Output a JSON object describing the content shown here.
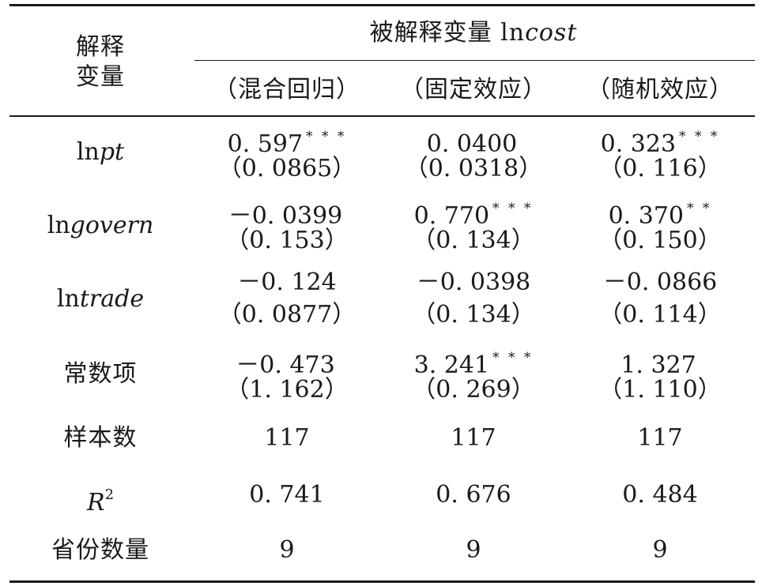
{
  "table": {
    "stub_header_1": "解释",
    "stub_header_2": "变量",
    "dependent_prefix": "被解释变量 ln",
    "dependent_var": "cost",
    "models": [
      "（混合回归）",
      "（固定效应）",
      "（随机效应）"
    ],
    "rows": [
      {
        "var_prefix": "ln",
        "var_ital": "pt",
        "coef": [
          "0. 597",
          "0. 0400",
          "0. 323"
        ],
        "stars": [
          "* * *",
          "",
          "* * *"
        ],
        "se": [
          "（0. 0865）",
          "（0. 0318）",
          "（0. 116）"
        ]
      },
      {
        "var_prefix": "ln",
        "var_ital": "govern",
        "coef": [
          "－0. 0399",
          "0. 770",
          "0. 370"
        ],
        "stars": [
          "",
          "* * *",
          "* *"
        ],
        "se": [
          "（0. 153）",
          "（0. 134）",
          "（0. 150）"
        ]
      },
      {
        "var_prefix": "ln",
        "var_ital": "trade",
        "coef": [
          "－0. 124",
          "－0. 0398",
          "－0. 0866"
        ],
        "stars": [
          "",
          "",
          ""
        ],
        "se": [
          "（0. 0877）",
          "（0. 134）",
          "（0. 114）"
        ]
      },
      {
        "var_label": "常数项",
        "coef": [
          "－0. 473",
          "3. 241",
          "1. 327"
        ],
        "stars": [
          "",
          "* * *",
          ""
        ],
        "se": [
          "（1. 162）",
          "（0. 269）",
          "（1. 110）"
        ]
      }
    ],
    "stats": [
      {
        "label": "样本数",
        "values": [
          "117",
          "117",
          "117"
        ]
      },
      {
        "label_ital": "R",
        "label_sup": "2",
        "values": [
          "0. 741",
          "0. 676",
          "0. 484"
        ]
      },
      {
        "label": "省份数量",
        "values": [
          "9",
          "9",
          "9"
        ]
      }
    ]
  }
}
